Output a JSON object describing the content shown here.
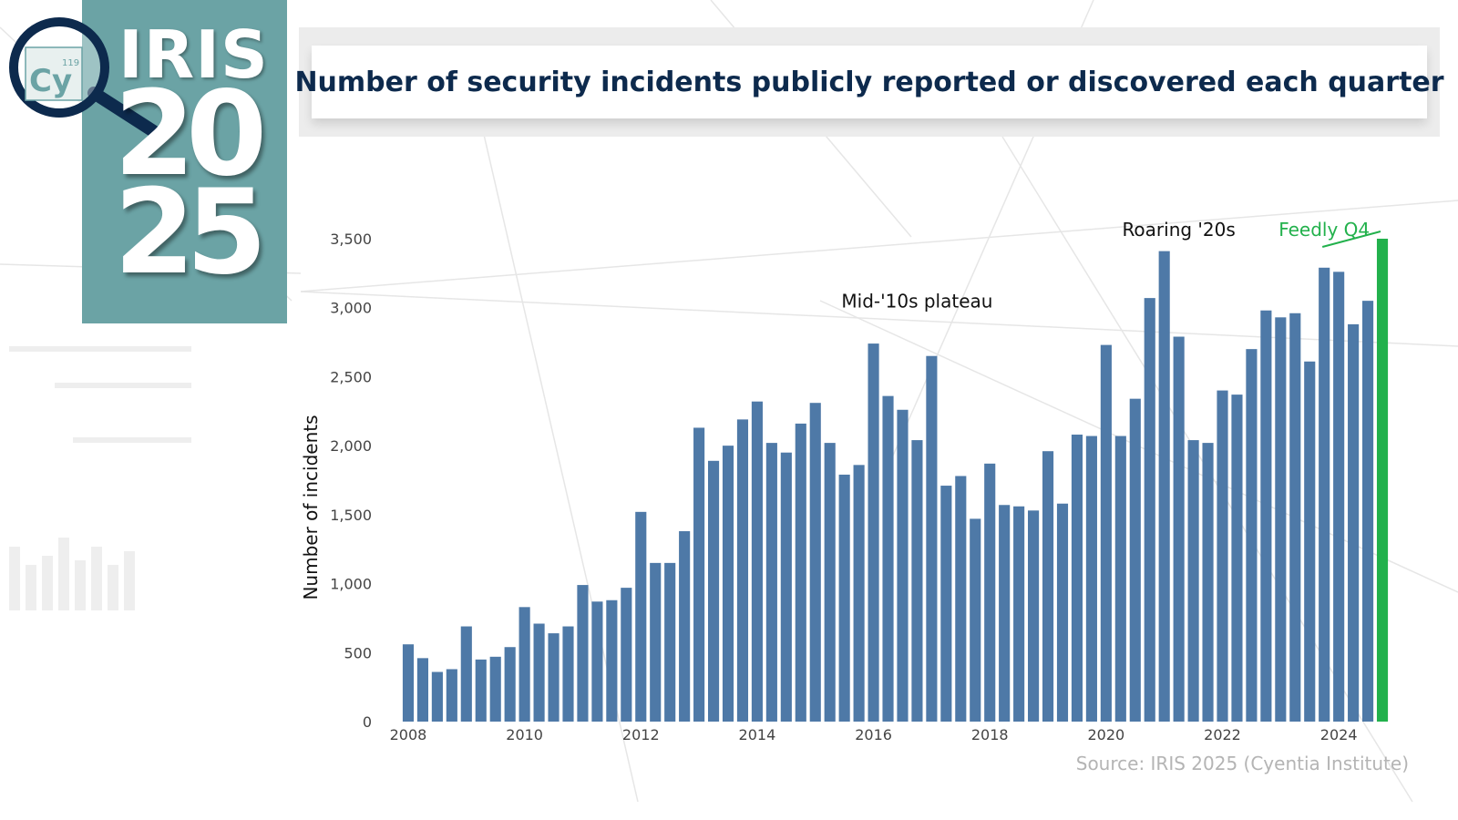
{
  "logo": {
    "element_symbol": "Cy",
    "atomic_number": "119",
    "brand": "IRIS",
    "year_top": "20",
    "year_bottom": "25"
  },
  "colors": {
    "bar": "#4e79a7",
    "highlight": "#22b14c",
    "title": "#0d2a4d",
    "logo_panel": "#6ba3a5"
  },
  "chart_data": {
    "type": "bar",
    "title": "Number of security incidents publicly reported or discovered each quarter",
    "ylabel": "Number of incidents",
    "xlabel": "",
    "ylim": [
      0,
      3500
    ],
    "yticks": [
      0,
      500,
      1000,
      1500,
      2000,
      2500,
      3000,
      3500
    ],
    "ytick_labels": [
      "0",
      "500",
      "1,000",
      "1,500",
      "2,000",
      "2,500",
      "3,000",
      "3,500"
    ],
    "xticks": [
      "2008",
      "2010",
      "2012",
      "2014",
      "2016",
      "2018",
      "2020",
      "2022",
      "2024"
    ],
    "grid": false,
    "start_year": 2008,
    "periods_per_year": 4,
    "values": [
      560,
      460,
      360,
      380,
      690,
      450,
      470,
      540,
      830,
      710,
      640,
      690,
      990,
      870,
      880,
      970,
      1520,
      1150,
      1150,
      1380,
      2130,
      1890,
      2000,
      2190,
      2320,
      2020,
      1950,
      2160,
      2310,
      2020,
      1790,
      1860,
      2740,
      2360,
      2260,
      2040,
      2650,
      1710,
      1780,
      1470,
      1870,
      1570,
      1560,
      1530,
      1960,
      1580,
      2080,
      2070,
      2730,
      2070,
      2340,
      3070,
      3410,
      2790,
      2040,
      2020,
      2400,
      2370,
      2700,
      2980,
      2930,
      2960,
      2610,
      3290,
      3260,
      2880,
      3050,
      3500
    ],
    "highlight_index": 67,
    "annotations": [
      {
        "text": "Mid-'10s plateau",
        "x_index": 35,
        "y": 3000
      },
      {
        "text": "Roaring '20s",
        "x_index": 53,
        "y": 3520
      },
      {
        "text": "Feedly Q4",
        "x_index": 63,
        "y": 3520,
        "highlight": true
      }
    ]
  },
  "source": "Source: IRIS 2025 (Cyentia Institute)"
}
